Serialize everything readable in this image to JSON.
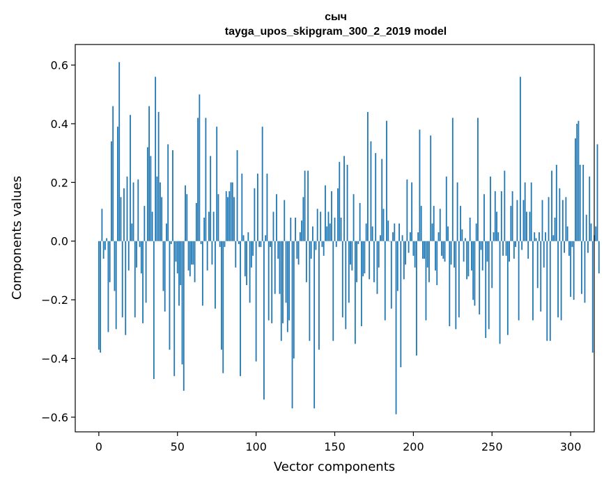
{
  "chart_data": {
    "type": "bar",
    "title": "сыч",
    "subtitle": "tayga_upos_skipgram_300_2_2019 model",
    "xlabel": "Vector components",
    "ylabel": "Components values",
    "xlim": [
      -15,
      315
    ],
    "ylim": [
      -0.65,
      0.67
    ],
    "x_ticks": [
      0,
      50,
      100,
      150,
      200,
      250,
      300
    ],
    "x_tick_labels": [
      "0",
      "50",
      "100",
      "150",
      "200",
      "250",
      "300"
    ],
    "y_ticks": [
      -0.6,
      -0.4,
      -0.2,
      0.0,
      0.2,
      0.4,
      0.6
    ],
    "y_tick_labels": [
      "−0.6",
      "−0.4",
      "−0.2",
      "0.0",
      "0.2",
      "0.4",
      "0.6"
    ],
    "bar_color": "#1f77b4",
    "grid": false,
    "values": [
      -0.37,
      -0.38,
      0.11,
      -0.06,
      -0.03,
      0.01,
      -0.31,
      -0.14,
      0.34,
      0.46,
      -0.17,
      -0.3,
      0.39,
      0.61,
      0.15,
      -0.26,
      0.18,
      -0.32,
      0.22,
      -0.1,
      0.43,
      0.06,
      0.2,
      -0.26,
      -0.09,
      0.21,
      -0.02,
      -0.11,
      -0.28,
      0.12,
      -0.21,
      0.32,
      0.46,
      0.29,
      0.1,
      -0.47,
      0.56,
      0.22,
      0.44,
      0.2,
      0.15,
      -0.17,
      -0.24,
      0.06,
      0.33,
      -0.37,
      -0.01,
      0.31,
      -0.46,
      -0.07,
      -0.11,
      -0.22,
      -0.15,
      -0.42,
      -0.51,
      0.19,
      0.16,
      -0.1,
      -0.12,
      -0.08,
      -0.08,
      -0.14,
      0.13,
      0.42,
      0.5,
      -0.01,
      -0.22,
      0.08,
      0.42,
      -0.1,
      0.1,
      0.29,
      -0.08,
      0.1,
      -0.23,
      0.39,
      0.16,
      -0.02,
      -0.37,
      -0.45,
      -0.02,
      0.17,
      0.15,
      0.17,
      0.2,
      0.2,
      0.15,
      -0.09,
      0.31,
      -0.01,
      -0.46,
      0.23,
      0.02,
      -0.12,
      -0.15,
      0.03,
      -0.21,
      -0.09,
      -0.05,
      0.18,
      -0.41,
      0.23,
      -0.02,
      -0.02,
      0.39,
      -0.54,
      0.02,
      0.23,
      -0.27,
      -0.02,
      -0.28,
      0.1,
      -0.18,
      0.16,
      -0.06,
      -0.18,
      -0.34,
      -0.28,
      0.14,
      -0.21,
      -0.31,
      -0.27,
      0.08,
      -0.57,
      -0.4,
      0.08,
      -0.06,
      -0.08,
      0.03,
      0.07,
      0.15,
      0.24,
      -0.14,
      0.24,
      -0.34,
      -0.06,
      0.05,
      -0.57,
      -0.03,
      0.11,
      -0.37,
      0.1,
      -0.02,
      -0.05,
      0.19,
      0.05,
      0.1,
      0.06,
      0.17,
      -0.34,
      0.08,
      -0.02,
      0.18,
      0.27,
      0.08,
      -0.26,
      0.29,
      -0.3,
      0.26,
      -0.21,
      -0.08,
      -0.1,
      0.16,
      -0.35,
      -0.14,
      -0.01,
      0.13,
      -0.29,
      -0.12,
      -0.11,
      0.06,
      0.44,
      -0.13,
      0.34,
      0.05,
      -0.14,
      0.3,
      -0.18,
      -0.09,
      0.02,
      0.28,
      0.11,
      -0.27,
      0.41,
      0.07,
      0.0,
      -0.23,
      0.03,
      0.06,
      -0.59,
      -0.17,
      0.06,
      -0.43,
      0.02,
      -0.13,
      -0.08,
      0.21,
      -0.04,
      0.03,
      0.2,
      -0.05,
      -0.09,
      -0.39,
      0.03,
      0.38,
      0.12,
      -0.06,
      -0.06,
      -0.27,
      -0.09,
      -0.14,
      0.36,
      0.06,
      0.12,
      -0.1,
      -0.15,
      0.03,
      0.11,
      -0.05,
      -0.06,
      -0.07,
      0.22,
      0.05,
      -0.29,
      -0.08,
      0.42,
      -0.09,
      -0.3,
      0.2,
      -0.26,
      0.12,
      0.04,
      -0.07,
      0.01,
      -0.13,
      -0.12,
      0.08,
      -0.1,
      -0.2,
      -0.22,
      0.06,
      0.42,
      -0.25,
      -0.03,
      -0.1,
      0.16,
      -0.33,
      -0.07,
      -0.3,
      0.22,
      -0.16,
      0.03,
      0.17,
      0.1,
      0.03,
      -0.35,
      0.17,
      -0.05,
      0.24,
      -0.05,
      -0.32,
      -0.07,
      0.12,
      0.17,
      -0.06,
      -0.02,
      0.14,
      -0.27,
      0.56,
      -0.03,
      0.14,
      0.2,
      0.1,
      -0.06,
      0.1,
      0.2,
      -0.27,
      0.03,
      0.01,
      -0.16,
      0.03,
      -0.24,
      0.14,
      -0.09,
      0.03,
      -0.34,
      0.15,
      -0.34,
      0.24,
      0.02,
      0.08,
      0.26,
      -0.26,
      0.18,
      -0.27,
      0.14,
      -0.04,
      0.15,
      0.05,
      -0.05,
      -0.19,
      -0.02,
      -0.2,
      0.35,
      0.4,
      0.41,
      0.26,
      -0.18,
      0.26,
      -0.21,
      0.09,
      -0.04,
      0.22,
      0.06,
      -0.38,
      0.02,
      0.05,
      0.33,
      -0.11
    ]
  }
}
